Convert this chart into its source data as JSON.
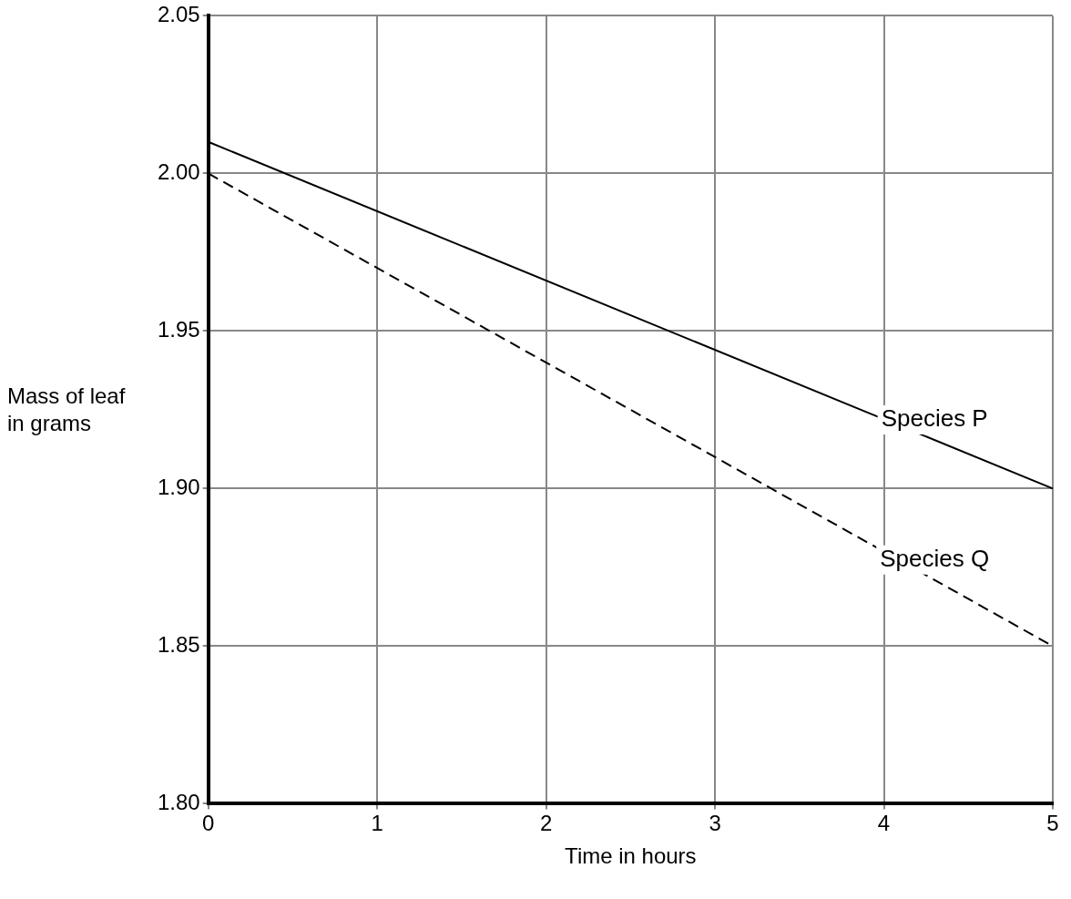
{
  "chart_data": {
    "type": "line",
    "xlabel": "Time in hours",
    "ylabel": "Mass of leaf in grams",
    "xlim": [
      0,
      5
    ],
    "xticks": [
      0,
      1,
      2,
      3,
      4,
      5
    ],
    "ylim": [
      1.8,
      2.05
    ],
    "yticks": [
      {
        "value": 1.8,
        "label": "1.80"
      },
      {
        "value": 1.85,
        "label": "1.85"
      },
      {
        "value": 1.9,
        "label": "1.90"
      },
      {
        "value": 1.95,
        "label": "1.95"
      },
      {
        "value": 2.0,
        "label": "2.00"
      },
      {
        "value": 2.05,
        "label": "2.05"
      }
    ],
    "x": [
      0,
      5
    ],
    "grid": true,
    "legend": false,
    "marker": "none",
    "series": [
      {
        "name": "Species P",
        "color": "#000000",
        "line_style": "solid",
        "values": [
          2.01,
          1.9
        ]
      },
      {
        "name": "Species Q",
        "color": "#000000",
        "line_style": "dashed",
        "values": [
          2.0,
          1.85
        ]
      }
    ]
  }
}
